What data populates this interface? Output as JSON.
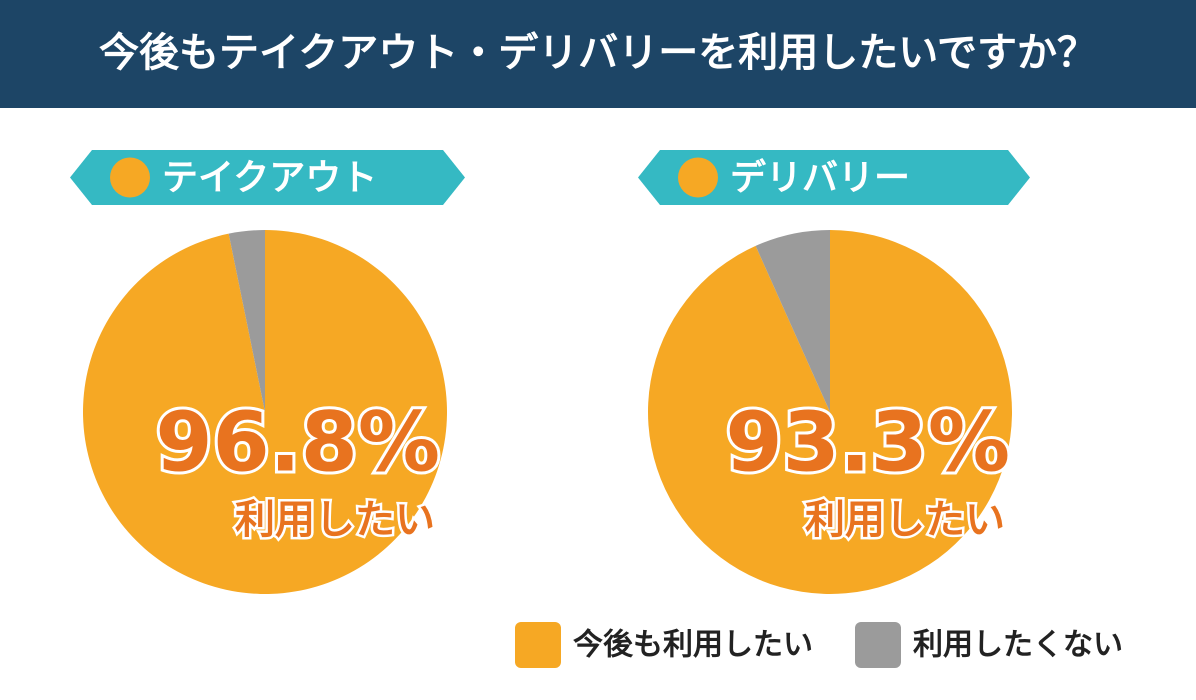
{
  "title": "今後もテイクアウト・デリバリーを利用したいですか？",
  "chart_data": [
    {
      "type": "pie",
      "title": "テイクアウト",
      "categories": [
        "今後も利用したい",
        "利用したくない"
      ],
      "values": [
        96.8,
        3.2
      ],
      "value_labels": [
        "96.8%",
        null
      ],
      "colors": [
        "#f6a824",
        "#9b9b9b"
      ],
      "caption": "利用したい"
    },
    {
      "type": "pie",
      "title": "デリバリー",
      "categories": [
        "今後も利用したい",
        "利用したくない"
      ],
      "values": [
        93.3,
        6.7
      ],
      "value_labels": [
        "93.3%",
        null
      ],
      "colors": [
        "#f6a824",
        "#9b9b9b"
      ],
      "caption": "利用したい"
    }
  ]
}
